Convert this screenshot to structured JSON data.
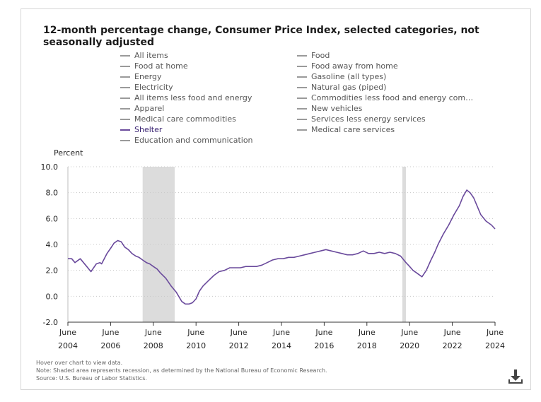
{
  "chart_data": {
    "type": "line",
    "title": "12-month percentage change, Consumer Price Index, selected categories, not seasonally adjusted",
    "ylabel": "Percent",
    "xlabel": "",
    "ylim": [
      -2.0,
      10.0
    ],
    "yticks": [
      "10.0",
      "8.0",
      "6.0",
      "4.0",
      "2.0",
      "0.0",
      "-2.0"
    ],
    "xlim": [
      2004.42,
      2024.42
    ],
    "xticks": [
      {
        "month": "June",
        "year": "2004",
        "x": 2004.42
      },
      {
        "month": "June",
        "year": "2006",
        "x": 2006.42
      },
      {
        "month": "June",
        "year": "2008",
        "x": 2008.42
      },
      {
        "month": "June",
        "year": "2010",
        "x": 2010.42
      },
      {
        "month": "June",
        "year": "2012",
        "x": 2012.42
      },
      {
        "month": "June",
        "year": "2014",
        "x": 2014.42
      },
      {
        "month": "June",
        "year": "2016",
        "x": 2016.42
      },
      {
        "month": "June",
        "year": "2018",
        "x": 2018.42
      },
      {
        "month": "June",
        "year": "2020",
        "x": 2020.42
      },
      {
        "month": "June",
        "year": "2022",
        "x": 2022.42
      },
      {
        "month": "June",
        "year": "2024",
        "x": 2024.42
      }
    ],
    "recessions": [
      [
        2007.92,
        2009.42
      ],
      [
        2020.08,
        2020.25
      ]
    ],
    "grid": true,
    "legend": {
      "left": [
        "All items",
        "Food at home",
        "Energy",
        "Electricity",
        "All items less food and energy",
        "Apparel",
        "Medical care commodities",
        "Shelter",
        "Education and communication"
      ],
      "right": [
        "Food",
        "Food away from home",
        "Gasoline (all types)",
        "Natural gas (piped)",
        "Commodities less food and energy com…",
        "New vehicles",
        "Services less energy services",
        "Medical care services"
      ],
      "active": "Shelter"
    },
    "series": [
      {
        "name": "Shelter",
        "color": "#6a4a9c",
        "x": [
          2004.42,
          2004.6,
          2004.75,
          2005.0,
          2005.25,
          2005.5,
          2005.75,
          2005.92,
          2006.0,
          2006.25,
          2006.42,
          2006.58,
          2006.75,
          2006.92,
          2007.08,
          2007.25,
          2007.42,
          2007.6,
          2007.75,
          2007.92,
          2008.1,
          2008.25,
          2008.42,
          2008.6,
          2008.75,
          2009.0,
          2009.25,
          2009.5,
          2009.75,
          2009.92,
          2010.1,
          2010.25,
          2010.42,
          2010.58,
          2010.75,
          2011.0,
          2011.25,
          2011.5,
          2011.75,
          2012.0,
          2012.25,
          2012.5,
          2012.75,
          2013.0,
          2013.25,
          2013.5,
          2013.75,
          2014.0,
          2014.25,
          2014.5,
          2014.75,
          2015.0,
          2015.25,
          2015.5,
          2015.75,
          2016.0,
          2016.25,
          2016.5,
          2016.75,
          2017.0,
          2017.25,
          2017.5,
          2017.75,
          2018.0,
          2018.25,
          2018.5,
          2018.75,
          2019.0,
          2019.25,
          2019.5,
          2019.75,
          2020.0,
          2020.25,
          2020.42,
          2020.58,
          2020.75,
          2021.0,
          2021.2,
          2021.42,
          2021.6,
          2021.75,
          2022.0,
          2022.25,
          2022.5,
          2022.75,
          2022.92,
          2023.1,
          2023.25,
          2023.42,
          2023.6,
          2023.75,
          2024.0,
          2024.25,
          2024.42
        ],
        "values": [
          2.9,
          2.9,
          2.6,
          2.9,
          2.4,
          1.9,
          2.5,
          2.6,
          2.5,
          3.3,
          3.7,
          4.1,
          4.3,
          4.2,
          3.8,
          3.6,
          3.3,
          3.1,
          3.0,
          2.8,
          2.6,
          2.5,
          2.3,
          2.1,
          1.8,
          1.4,
          0.8,
          0.3,
          -0.4,
          -0.6,
          -0.6,
          -0.5,
          -0.2,
          0.4,
          0.8,
          1.2,
          1.6,
          1.9,
          2.0,
          2.2,
          2.2,
          2.2,
          2.3,
          2.3,
          2.3,
          2.4,
          2.6,
          2.8,
          2.9,
          2.9,
          3.0,
          3.0,
          3.1,
          3.2,
          3.3,
          3.4,
          3.5,
          3.6,
          3.5,
          3.4,
          3.3,
          3.2,
          3.2,
          3.3,
          3.5,
          3.3,
          3.3,
          3.4,
          3.3,
          3.4,
          3.3,
          3.1,
          2.6,
          2.3,
          2.0,
          1.8,
          1.5,
          2.0,
          2.8,
          3.4,
          4.0,
          4.8,
          5.5,
          6.3,
          7.0,
          7.7,
          8.2,
          8.0,
          7.6,
          6.9,
          6.3,
          5.8,
          5.5,
          5.2
        ]
      }
    ],
    "hover_text": "Hover over chart to view data.",
    "note": "Note: Shaded area represents recession, as determined by the National Bureau of Economic Research.",
    "source": "Source: U.S. Bureau of Labor Statistics."
  },
  "ui": {
    "download_icon": "download-icon"
  }
}
